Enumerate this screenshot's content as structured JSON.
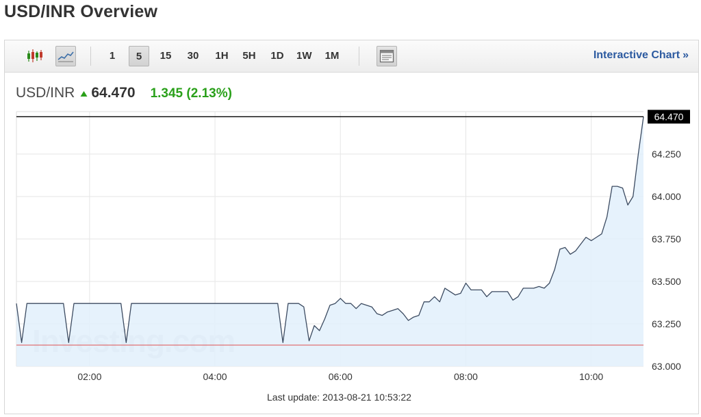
{
  "page": {
    "title": "USD/INR Overview"
  },
  "toolbar": {
    "chart_type_icons": [
      "candlestick-icon",
      "line-chart-icon"
    ],
    "timeframes": [
      "1",
      "5",
      "15",
      "30",
      "1H",
      "5H",
      "1D",
      "1W",
      "1M"
    ],
    "active_timeframe": "5",
    "settings_icon": "chart-settings-icon",
    "interactive_chart_label": "Interactive Chart",
    "interactive_chart_chevron": "»"
  },
  "quote": {
    "symbol": "USD/INR",
    "direction": "up",
    "price": "64.470",
    "change": "1.345 (2.13%)",
    "change_color": "#2aa01a"
  },
  "chart_data": {
    "type": "area",
    "x_unit": "time (hh:mm), 2013-08-21",
    "x_ticks": [
      "02:00",
      "04:00",
      "06:00",
      "08:00",
      "10:00"
    ],
    "y_ticks": [
      "63.000",
      "63.250",
      "63.500",
      "63.750",
      "64.000",
      "64.250"
    ],
    "ylim": [
      63.0,
      64.5
    ],
    "grid": true,
    "watermark": "Investing.com",
    "last_price_label": "64.470",
    "last_price_line": 64.47,
    "previous_close_line": 63.125,
    "colors": {
      "line": "#3b4a60",
      "fill": "#e2f0fb",
      "previous_close": "#e05050",
      "last_price": "#000000"
    },
    "series": [
      {
        "x": [
          "00:50",
          "00:55",
          "01:00",
          "01:05",
          "01:10",
          "01:15",
          "01:20",
          "01:25",
          "01:30",
          "01:35",
          "01:40",
          "01:45",
          "01:50",
          "01:55",
          "02:00",
          "02:05",
          "02:10",
          "02:15",
          "02:20",
          "02:25",
          "02:30",
          "02:35",
          "02:40",
          "02:45",
          "02:50",
          "02:55",
          "03:00",
          "03:05",
          "03:10",
          "03:15",
          "03:20",
          "03:25",
          "03:30",
          "03:35",
          "03:40",
          "03:45",
          "03:50",
          "03:55",
          "04:00",
          "04:05",
          "04:10",
          "04:15",
          "04:20",
          "04:25",
          "04:30",
          "04:35",
          "04:40",
          "04:45",
          "04:50",
          "04:55",
          "05:00",
          "05:05",
          "05:10",
          "05:15",
          "05:20",
          "05:25",
          "05:30",
          "05:35",
          "05:40",
          "05:45",
          "05:50",
          "05:55",
          "06:00",
          "06:05",
          "06:10",
          "06:15",
          "06:20",
          "06:25",
          "06:30",
          "06:35",
          "06:40",
          "06:45",
          "06:50",
          "06:55",
          "07:00",
          "07:05",
          "07:10",
          "07:15",
          "07:20",
          "07:25",
          "07:30",
          "07:35",
          "07:40",
          "07:45",
          "07:50",
          "07:55",
          "08:00",
          "08:05",
          "08:10",
          "08:15",
          "08:20",
          "08:25",
          "08:30",
          "08:35",
          "08:40",
          "08:45",
          "08:50",
          "08:55",
          "09:00",
          "09:05",
          "09:10",
          "09:15",
          "09:20",
          "09:25",
          "09:30",
          "09:35",
          "09:40",
          "09:45",
          "09:50",
          "09:55",
          "10:00",
          "10:05",
          "10:10",
          "10:15",
          "10:20",
          "10:25",
          "10:30",
          "10:35",
          "10:40",
          "10:45",
          "10:50"
        ],
        "y": [
          63.37,
          63.14,
          63.37,
          63.37,
          63.37,
          63.37,
          63.37,
          63.37,
          63.37,
          63.37,
          63.14,
          63.37,
          63.37,
          63.37,
          63.37,
          63.37,
          63.37,
          63.37,
          63.37,
          63.37,
          63.37,
          63.14,
          63.37,
          63.37,
          63.37,
          63.37,
          63.37,
          63.37,
          63.37,
          63.37,
          63.37,
          63.37,
          63.37,
          63.37,
          63.37,
          63.37,
          63.37,
          63.37,
          63.37,
          63.37,
          63.37,
          63.37,
          63.37,
          63.37,
          63.37,
          63.37,
          63.37,
          63.37,
          63.37,
          63.37,
          63.37,
          63.14,
          63.37,
          63.37,
          63.37,
          63.35,
          63.15,
          63.24,
          63.21,
          63.28,
          63.36,
          63.37,
          63.4,
          63.37,
          63.37,
          63.34,
          63.37,
          63.36,
          63.35,
          63.31,
          63.3,
          63.32,
          63.33,
          63.34,
          63.31,
          63.27,
          63.29,
          63.3,
          63.38,
          63.38,
          63.41,
          63.38,
          63.46,
          63.44,
          63.42,
          63.43,
          63.49,
          63.45,
          63.45,
          63.45,
          63.41,
          63.44,
          63.44,
          63.44,
          63.44,
          63.39,
          63.41,
          63.46,
          63.46,
          63.46,
          63.47,
          63.46,
          63.49,
          63.57,
          63.69,
          63.7,
          63.66,
          63.68,
          63.72,
          63.76,
          63.74,
          63.76,
          63.78,
          63.88,
          64.06,
          64.06,
          64.05,
          63.95,
          64.0,
          64.25,
          64.47
        ]
      }
    ]
  },
  "footer": {
    "last_update": "Last update: 2013-08-21 10:53:22"
  }
}
